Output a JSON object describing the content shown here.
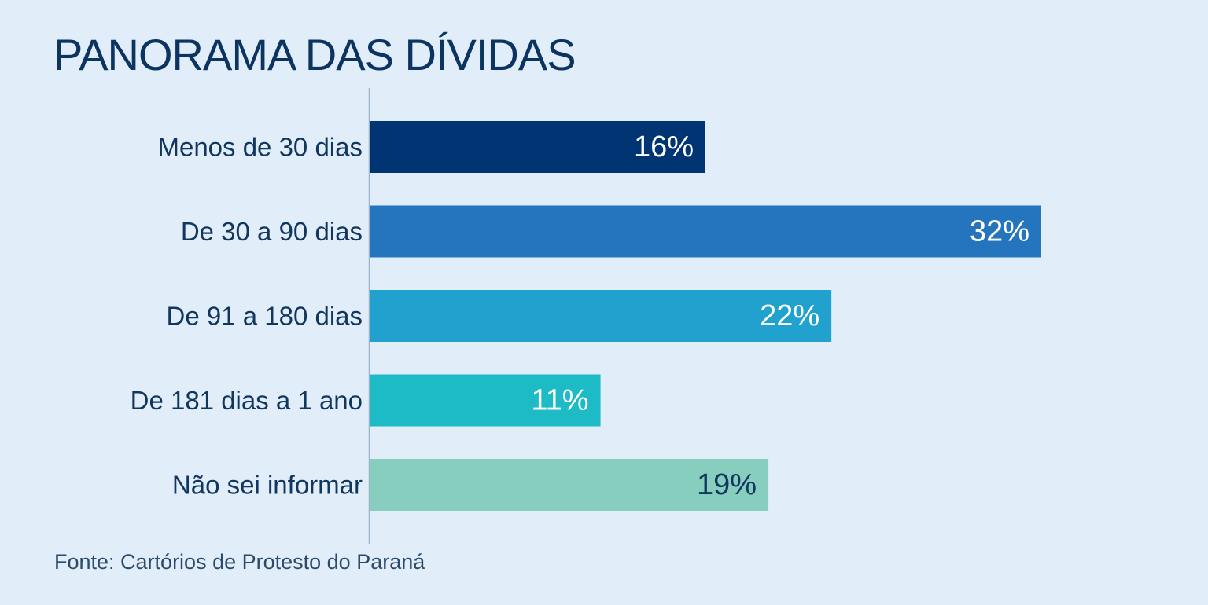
{
  "title": "PANORAMA DAS DÍVIDAS",
  "source": "Fonte: Cartórios de Protesto do Paraná",
  "chart_data": {
    "type": "bar",
    "orientation": "horizontal",
    "categories": [
      "Menos de 30 dias",
      "De 30 a 90 dias",
      "De 91 a 180 dias",
      "De 181 dias a 1 ano",
      "Não sei informar"
    ],
    "values": [
      16,
      32,
      22,
      11,
      19
    ],
    "value_labels": [
      "16%",
      "32%",
      "22%",
      "11%",
      "19%"
    ],
    "unit": "%",
    "xlim": [
      0,
      32
    ],
    "colors": [
      "#003473",
      "#2475bd",
      "#21a1ce",
      "#1dbbc6",
      "#87cebf"
    ],
    "label_colors": [
      "#ffffff",
      "#ffffff",
      "#ffffff",
      "#ffffff",
      "#12375e"
    ],
    "grid": false,
    "legend": "none"
  }
}
